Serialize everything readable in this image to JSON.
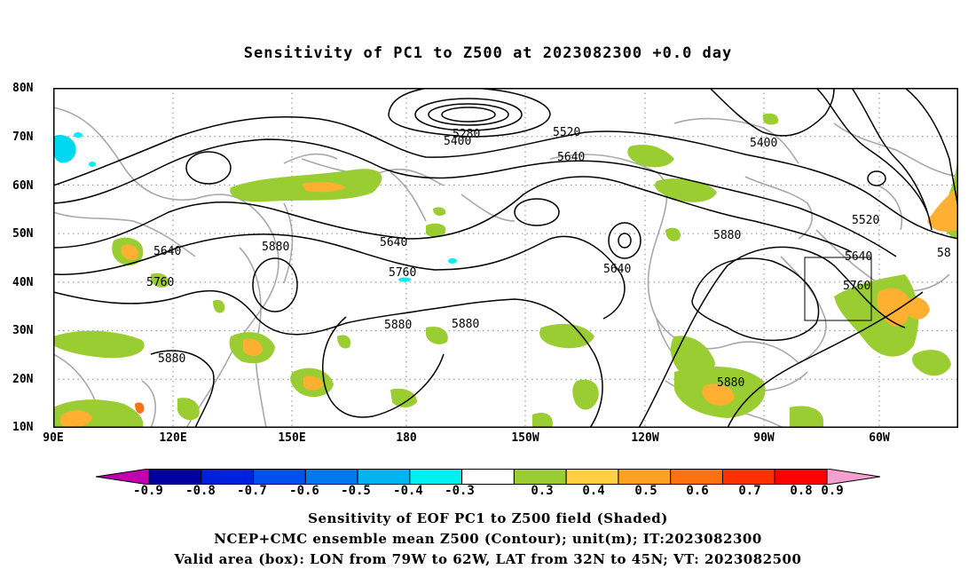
{
  "title": "Sensitivity of PC1 to Z500 at 2023082300 +0.0 day",
  "lat_labels": [
    "80N",
    "70N",
    "60N",
    "50N",
    "40N",
    "30N",
    "20N",
    "10N"
  ],
  "lon_labels": [
    "90E",
    "120E",
    "150E",
    "180",
    "150W",
    "120W",
    "90W",
    "60W"
  ],
  "contour_labels": [
    "5280",
    "5400",
    "5520",
    "5640",
    "5400",
    "5520",
    "5640",
    "5640",
    "5880",
    "5640",
    "5760",
    "5880",
    "5760",
    "5640",
    "58",
    "5760",
    "5760",
    "5880",
    "5880",
    "5880",
    "5880"
  ],
  "colorbar": {
    "labels": [
      "-0.9",
      "-0.8",
      "-0.7",
      "-0.6",
      "-0.5",
      "-0.4",
      "-0.3",
      "0.3",
      "0.4",
      "0.5",
      "0.6",
      "0.7",
      "0.8",
      "0.9"
    ],
    "colors": [
      "#0000a0",
      "#0020e0",
      "#0050f0",
      "#0078f0",
      "#00b4f0",
      "#00f0f0",
      "#ffffff",
      "#9acd32",
      "#ffd040",
      "#ffa020",
      "#ff7010",
      "#ff3000",
      "#ff0000"
    ],
    "low_end_color": "#c000b0",
    "high_end_color": "#f4a0d0"
  },
  "captions": [
    "Sensitivity of EOF PC1 to Z500 field (Shaded)",
    "NCEP+CMC ensemble mean Z500 (Contour); unit(m); IT:2023082300",
    "Valid area (box): LON from 79W to 62W, LAT from 32N to 45N; VT: 2023082500"
  ]
}
